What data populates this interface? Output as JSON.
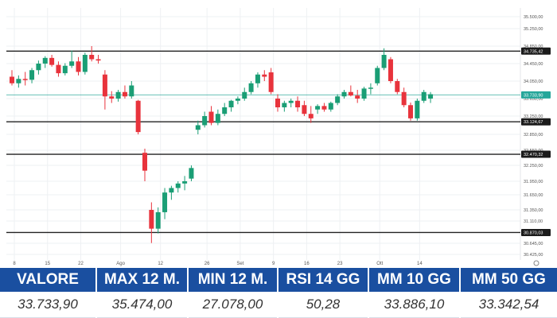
{
  "chart_data": {
    "type": "candlestick",
    "title": "",
    "xlabel": "",
    "ylabel": "",
    "ylim": [
      30425,
      35500
    ],
    "y_ticks": [
      "35.500,00",
      "35.250,00",
      "34.850,00",
      "34.450,00",
      "34.050,00",
      "33.650,00",
      "33.250,00",
      "32.850,00",
      "32.550,00",
      "32.250,00",
      "31.950,00",
      "31.650,00",
      "31.350,00",
      "31.110,00",
      "30.645,00",
      "30.425,00"
    ],
    "y_tick_values": [
      35500,
      35250,
      34850,
      34450,
      34050,
      33650,
      33250,
      32850,
      32550,
      32250,
      31950,
      31650,
      31350,
      31110,
      30645,
      30425
    ],
    "x_tick_labels": [
      "8",
      "15",
      "22",
      "Ago",
      "12",
      "26",
      "Set",
      "9",
      "16",
      "23",
      "Ott",
      "14"
    ],
    "x_tick_index": [
      0,
      5,
      10,
      16,
      22,
      29,
      34,
      39,
      44,
      49,
      55,
      61
    ],
    "reference_levels": [
      {
        "value": 34735.42,
        "label": "34.735,42"
      },
      {
        "value": 33124.67,
        "label": "33.124,67"
      },
      {
        "value": 32470.32,
        "label": "32.470,32"
      },
      {
        "value": 30870.03,
        "label": "30.870,03"
      }
    ],
    "last_price": {
      "value": 33733.9,
      "label": "33.733,90"
    },
    "candles": [
      {
        "o": 34150,
        "h": 34300,
        "l": 33950,
        "c": 34000
      },
      {
        "o": 34000,
        "h": 34180,
        "l": 33900,
        "c": 34100
      },
      {
        "o": 34100,
        "h": 34260,
        "l": 33950,
        "c": 34080
      },
      {
        "o": 34080,
        "h": 34350,
        "l": 34000,
        "c": 34300
      },
      {
        "o": 34300,
        "h": 34520,
        "l": 34200,
        "c": 34450
      },
      {
        "o": 34450,
        "h": 34620,
        "l": 34350,
        "c": 34580
      },
      {
        "o": 34580,
        "h": 34650,
        "l": 34380,
        "c": 34420
      },
      {
        "o": 34420,
        "h": 34500,
        "l": 34150,
        "c": 34230
      },
      {
        "o": 34230,
        "h": 34460,
        "l": 34180,
        "c": 34400
      },
      {
        "o": 34400,
        "h": 34750,
        "l": 34350,
        "c": 34500
      },
      {
        "o": 34500,
        "h": 34600,
        "l": 34180,
        "c": 34260
      },
      {
        "o": 34260,
        "h": 34700,
        "l": 34200,
        "c": 34650
      },
      {
        "o": 34650,
        "h": 34850,
        "l": 34500,
        "c": 34550
      },
      {
        "o": 34550,
        "h": 34650,
        "l": 34450,
        "c": 34520
      },
      {
        "o": 34200,
        "h": 34300,
        "l": 33400,
        "c": 33700
      },
      {
        "o": 33700,
        "h": 33820,
        "l": 33550,
        "c": 33650
      },
      {
        "o": 33650,
        "h": 33850,
        "l": 33580,
        "c": 33800
      },
      {
        "o": 33800,
        "h": 33950,
        "l": 33650,
        "c": 33700
      },
      {
        "o": 33700,
        "h": 34050,
        "l": 33650,
        "c": 33950
      },
      {
        "o": 33600,
        "h": 33620,
        "l": 32850,
        "c": 32900
      },
      {
        "o": 32500,
        "h": 32580,
        "l": 31950,
        "c": 32150
      },
      {
        "o": 31350,
        "h": 31500,
        "l": 30650,
        "c": 30950
      },
      {
        "o": 30950,
        "h": 31400,
        "l": 30850,
        "c": 31300
      },
      {
        "o": 31300,
        "h": 31800,
        "l": 31150,
        "c": 31700
      },
      {
        "o": 31700,
        "h": 31850,
        "l": 31550,
        "c": 31800
      },
      {
        "o": 31800,
        "h": 31950,
        "l": 31700,
        "c": 31900
      },
      {
        "o": 31900,
        "h": 32050,
        "l": 31750,
        "c": 31950
      },
      {
        "o": 32000,
        "h": 32250,
        "l": 31950,
        "c": 32200
      },
      {
        "o": 32950,
        "h": 33150,
        "l": 32850,
        "c": 33050
      },
      {
        "o": 33050,
        "h": 33350,
        "l": 33000,
        "c": 33250
      },
      {
        "o": 33350,
        "h": 33480,
        "l": 33050,
        "c": 33100
      },
      {
        "o": 33100,
        "h": 33400,
        "l": 33050,
        "c": 33300
      },
      {
        "o": 33300,
        "h": 33550,
        "l": 33250,
        "c": 33450
      },
      {
        "o": 33450,
        "h": 33620,
        "l": 33350,
        "c": 33600
      },
      {
        "o": 33600,
        "h": 33700,
        "l": 33520,
        "c": 33650
      },
      {
        "o": 33650,
        "h": 33900,
        "l": 33600,
        "c": 33800
      },
      {
        "o": 33800,
        "h": 34050,
        "l": 33750,
        "c": 34000
      },
      {
        "o": 34000,
        "h": 34250,
        "l": 33900,
        "c": 34200
      },
      {
        "o": 34200,
        "h": 34300,
        "l": 34050,
        "c": 34150
      },
      {
        "o": 34250,
        "h": 34350,
        "l": 33750,
        "c": 33800
      },
      {
        "o": 33650,
        "h": 33750,
        "l": 33350,
        "c": 33450
      },
      {
        "o": 33450,
        "h": 33600,
        "l": 33350,
        "c": 33550
      },
      {
        "o": 33550,
        "h": 33650,
        "l": 33450,
        "c": 33600
      },
      {
        "o": 33600,
        "h": 33700,
        "l": 33350,
        "c": 33450
      },
      {
        "o": 33500,
        "h": 33600,
        "l": 33250,
        "c": 33300
      },
      {
        "o": 33300,
        "h": 33480,
        "l": 33100,
        "c": 33200
      },
      {
        "o": 33400,
        "h": 33520,
        "l": 33300,
        "c": 33480
      },
      {
        "o": 33480,
        "h": 33550,
        "l": 33350,
        "c": 33400
      },
      {
        "o": 33400,
        "h": 33580,
        "l": 33350,
        "c": 33550
      },
      {
        "o": 33550,
        "h": 33750,
        "l": 33500,
        "c": 33700
      },
      {
        "o": 33700,
        "h": 33850,
        "l": 33650,
        "c": 33800
      },
      {
        "o": 33800,
        "h": 33950,
        "l": 33700,
        "c": 33720
      },
      {
        "o": 33720,
        "h": 33850,
        "l": 33550,
        "c": 33650
      },
      {
        "o": 33650,
        "h": 33920,
        "l": 33600,
        "c": 33880
      },
      {
        "o": 33880,
        "h": 34000,
        "l": 33750,
        "c": 33900
      },
      {
        "o": 34000,
        "h": 34400,
        "l": 33950,
        "c": 34350
      },
      {
        "o": 34350,
        "h": 34800,
        "l": 34300,
        "c": 34650
      },
      {
        "o": 34550,
        "h": 34600,
        "l": 34000,
        "c": 34050
      },
      {
        "o": 34050,
        "h": 34100,
        "l": 33750,
        "c": 33800
      },
      {
        "o": 33800,
        "h": 33900,
        "l": 33450,
        "c": 33500
      },
      {
        "o": 33500,
        "h": 33560,
        "l": 33150,
        "c": 33200
      },
      {
        "o": 33200,
        "h": 33650,
        "l": 33150,
        "c": 33600
      },
      {
        "o": 33600,
        "h": 33850,
        "l": 33550,
        "c": 33800
      },
      {
        "o": 33650,
        "h": 33800,
        "l": 33550,
        "c": 33750
      }
    ],
    "up_color": "#1a9e75",
    "down_color": "#e8333c",
    "level_line_color": "#222222",
    "last_price_line_color": "#26a69a",
    "grid": true
  },
  "stats": [
    {
      "label": "VALORE",
      "value": "33.733,90"
    },
    {
      "label": "MAX 12 M.",
      "value": "35.474,00"
    },
    {
      "label": "MIN 12 M.",
      "value": "27.078,00"
    },
    {
      "label": "RSI 14 GG",
      "value": "50,28"
    },
    {
      "label": "MM 10 GG",
      "value": "33.886,10"
    },
    {
      "label": "MM 50 GG",
      "value": "33.342,54"
    }
  ],
  "colors": {
    "header_bg": "#1a4fa0",
    "header_text": "#ffffff"
  }
}
